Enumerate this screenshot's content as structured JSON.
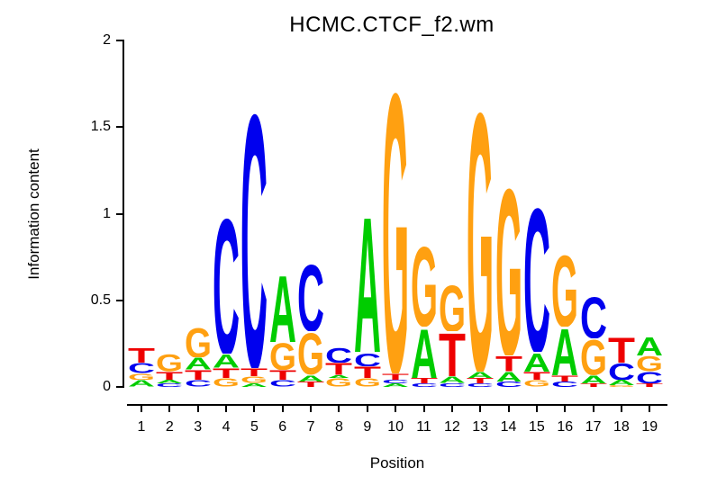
{
  "title": "HCMC.CTCF_f2.wm",
  "chart_data": {
    "type": "sequence_logo",
    "title": "HCMC.CTCF_f2.wm",
    "xlabel": "Position",
    "ylabel": "Information content",
    "ylim": [
      0,
      2
    ],
    "yticks": [
      "0",
      "0.5",
      "1",
      "1.5",
      "2"
    ],
    "ytick_values": [
      0,
      0.5,
      1,
      1.5,
      2
    ],
    "grid": false,
    "legend": false,
    "base_colors": {
      "A": "#00CC00",
      "C": "#0000EE",
      "G": "#FFA011",
      "T": "#EE0000"
    },
    "positions": [
      1,
      2,
      3,
      4,
      5,
      6,
      7,
      8,
      9,
      10,
      11,
      12,
      13,
      14,
      15,
      16,
      17,
      18,
      19
    ],
    "stacks": [
      [
        {
          "base": "T",
          "bits": 0.09
        },
        {
          "base": "C",
          "bits": 0.06
        },
        {
          "base": "G",
          "bits": 0.04
        },
        {
          "base": "A",
          "bits": 0.04
        }
      ],
      [
        {
          "base": "G",
          "bits": 0.1
        },
        {
          "base": "T",
          "bits": 0.05
        },
        {
          "base": "A",
          "bits": 0.02
        },
        {
          "base": "C",
          "bits": 0.02
        }
      ],
      [
        {
          "base": "G",
          "bits": 0.18
        },
        {
          "base": "A",
          "bits": 0.07
        },
        {
          "base": "T",
          "bits": 0.06
        },
        {
          "base": "C",
          "bits": 0.04
        }
      ],
      [
        {
          "base": "C",
          "bits": 0.82
        },
        {
          "base": "A",
          "bits": 0.08
        },
        {
          "base": "T",
          "bits": 0.06
        },
        {
          "base": "G",
          "bits": 0.05
        }
      ],
      [
        {
          "base": "C",
          "bits": 1.53
        },
        {
          "base": "T",
          "bits": 0.05
        },
        {
          "base": "G",
          "bits": 0.04
        },
        {
          "base": "A",
          "bits": 0.02
        }
      ],
      [
        {
          "base": "A",
          "bits": 0.4
        },
        {
          "base": "G",
          "bits": 0.16
        },
        {
          "base": "T",
          "bits": 0.06
        },
        {
          "base": "C",
          "bits": 0.04
        }
      ],
      [
        {
          "base": "C",
          "bits": 0.4
        },
        {
          "base": "G",
          "bits": 0.25
        },
        {
          "base": "A",
          "bits": 0.04
        },
        {
          "base": "T",
          "bits": 0.03
        }
      ],
      [
        {
          "base": "C",
          "bits": 0.09
        },
        {
          "base": "T",
          "bits": 0.07
        },
        {
          "base": "A",
          "bits": 0.02
        },
        {
          "base": "G",
          "bits": 0.05
        }
      ],
      [
        {
          "base": "A",
          "bits": 0.82
        },
        {
          "base": "C",
          "bits": 0.08
        },
        {
          "base": "T",
          "bits": 0.07
        },
        {
          "base": "G",
          "bits": 0.05
        }
      ],
      [
        {
          "base": "G",
          "bits": 1.69
        },
        {
          "base": "T",
          "bits": 0.04
        },
        {
          "base": "C",
          "bits": 0.02
        },
        {
          "base": "A",
          "bits": 0.02
        }
      ],
      [
        {
          "base": "G",
          "bits": 0.48
        },
        {
          "base": "A",
          "bits": 0.3
        },
        {
          "base": "T",
          "bits": 0.03
        },
        {
          "base": "C",
          "bits": 0.02
        }
      ],
      [
        {
          "base": "G",
          "bits": 0.28
        },
        {
          "base": "T",
          "bits": 0.26
        },
        {
          "base": "A",
          "bits": 0.04
        },
        {
          "base": "C",
          "bits": 0.02
        }
      ],
      [
        {
          "base": "G",
          "bits": 1.56
        },
        {
          "base": "A",
          "bits": 0.04
        },
        {
          "base": "T",
          "bits": 0.03
        },
        {
          "base": "C",
          "bits": 0.02
        }
      ],
      [
        {
          "base": "G",
          "bits": 1.01
        },
        {
          "base": "T",
          "bits": 0.09
        },
        {
          "base": "A",
          "bits": 0.06
        },
        {
          "base": "C",
          "bits": 0.03
        }
      ],
      [
        {
          "base": "C",
          "bits": 0.87
        },
        {
          "base": "A",
          "bits": 0.11
        },
        {
          "base": "T",
          "bits": 0.05
        },
        {
          "base": "G",
          "bits": 0.04
        }
      ],
      [
        {
          "base": "G",
          "bits": 0.43
        },
        {
          "base": "A",
          "bits": 0.28
        },
        {
          "base": "T",
          "bits": 0.04
        },
        {
          "base": "C",
          "bits": 0.03
        }
      ],
      [
        {
          "base": "C",
          "bits": 0.25
        },
        {
          "base": "G",
          "bits": 0.21
        },
        {
          "base": "A",
          "bits": 0.05
        },
        {
          "base": "T",
          "bits": 0.02
        }
      ],
      [
        {
          "base": "T",
          "bits": 0.15
        },
        {
          "base": "C",
          "bits": 0.1
        },
        {
          "base": "A",
          "bits": 0.03
        },
        {
          "base": "G",
          "bits": 0.01
        }
      ],
      [
        {
          "base": "A",
          "bits": 0.11
        },
        {
          "base": "G",
          "bits": 0.09
        },
        {
          "base": "C",
          "bits": 0.07
        },
        {
          "base": "T",
          "bits": 0.02
        }
      ]
    ]
  }
}
